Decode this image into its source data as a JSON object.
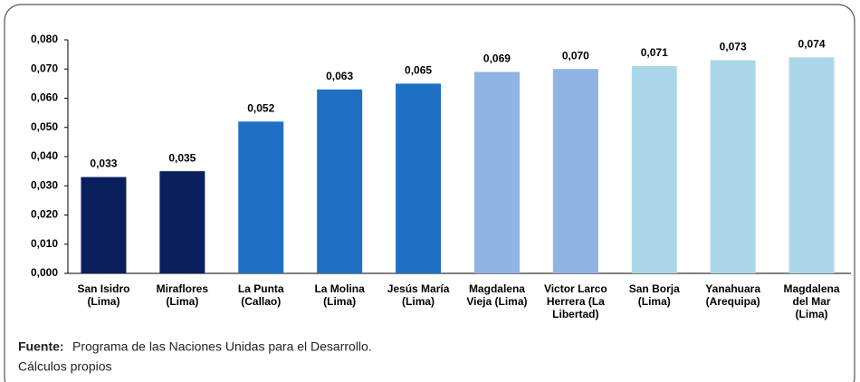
{
  "chart_data": {
    "type": "bar",
    "categories": [
      [
        "San Isidro",
        "(Lima)"
      ],
      [
        "Miraflores",
        "(Lima)"
      ],
      [
        "La Punta",
        "(Callao)"
      ],
      [
        "La Molina",
        "(Lima)"
      ],
      [
        "Jesús María",
        "(Lima)"
      ],
      [
        "Magdalena",
        "Vieja (Lima)"
      ],
      [
        "Victor Larco",
        "Herrera (La",
        "Libertad)"
      ],
      [
        "San Borja",
        "(Lima)"
      ],
      [
        "Yanahuara",
        "(Arequipa)"
      ],
      [
        "Magdalena",
        "del Mar",
        "(Lima)"
      ]
    ],
    "values": [
      0.033,
      0.035,
      0.052,
      0.063,
      0.065,
      0.069,
      0.07,
      0.071,
      0.073,
      0.074
    ],
    "value_labels": [
      "0,033",
      "0,035",
      "0,052",
      "0,063",
      "0,065",
      "0,069",
      "0,070",
      "0,071",
      "0,073",
      "0,074"
    ],
    "colors": [
      "#0b1f5e",
      "#0b1f5e",
      "#1f70c4",
      "#1f70c4",
      "#1f70c4",
      "#8fb3e2",
      "#8fb3e2",
      "#a9d7e7",
      "#a9d7e7",
      "#a9d7e7"
    ],
    "ylim": [
      0,
      0.08
    ],
    "yticks": [
      {
        "value": 0,
        "label": "0,000"
      },
      {
        "value": 0.01,
        "label": "0,010"
      },
      {
        "value": 0.02,
        "label": "0,020"
      },
      {
        "value": 0.03,
        "label": "0,030"
      },
      {
        "value": 0.04,
        "label": "0,040"
      },
      {
        "value": 0.05,
        "label": "0,050"
      },
      {
        "value": 0.06,
        "label": "0,060"
      },
      {
        "value": 0.07,
        "label": "0,070"
      },
      {
        "value": 0.08,
        "label": "0,080"
      }
    ],
    "grid": false,
    "source_label": "Fuente:",
    "source": [
      "Programa de las Naciones Unidas para el Desarrollo.",
      "Cálculos propios"
    ]
  }
}
